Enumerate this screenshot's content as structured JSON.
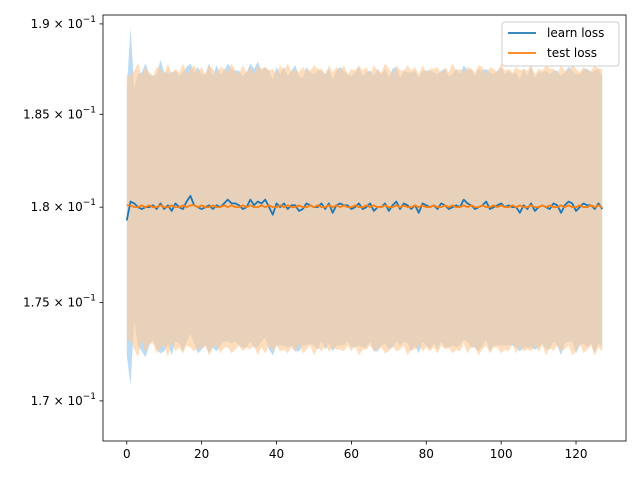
{
  "chart_data": {
    "type": "line",
    "title": "",
    "xlabel": "",
    "ylabel": "",
    "xlim": [
      -6.35,
      133.35
    ],
    "ylim": [
      0.168,
      0.1905
    ],
    "y_scale": "log",
    "x_ticks": [
      0,
      20,
      40,
      60,
      80,
      100,
      120
    ],
    "x_tick_labels": [
      "0",
      "20",
      "40",
      "60",
      "80",
      "100",
      "120"
    ],
    "y_ticks": [
      0.17,
      0.175,
      0.18,
      0.185,
      0.19
    ],
    "y_tick_labels": [
      {
        "mantissa": "1.7",
        "exp": "−1"
      },
      {
        "mantissa": "1.75",
        "exp": "−1"
      },
      {
        "mantissa": "1.8",
        "exp": "−1"
      },
      {
        "mantissa": "1.85",
        "exp": "−1"
      },
      {
        "mantissa": "1.9",
        "exp": "−1"
      }
    ],
    "legend": {
      "placement": "upper-right",
      "entries": [
        "learn loss",
        "test loss"
      ]
    },
    "colors": {
      "learn": "#1f77b4",
      "test": "#ff7f0e",
      "learn_fill": "#a6cff2",
      "test_fill": "#ffcc99",
      "overlap": "#d7ccc8"
    },
    "grid": false,
    "x": [
      0,
      1,
      2,
      3,
      4,
      5,
      6,
      7,
      8,
      9,
      10,
      11,
      12,
      13,
      14,
      15,
      16,
      17,
      18,
      19,
      20,
      21,
      22,
      23,
      24,
      25,
      26,
      27,
      28,
      29,
      30,
      31,
      32,
      33,
      34,
      35,
      36,
      37,
      38,
      39,
      40,
      41,
      42,
      43,
      44,
      45,
      46,
      47,
      48,
      49,
      50,
      51,
      52,
      53,
      54,
      55,
      56,
      57,
      58,
      59,
      60,
      61,
      62,
      63,
      64,
      65,
      66,
      67,
      68,
      69,
      70,
      71,
      72,
      73,
      74,
      75,
      76,
      77,
      78,
      79,
      80,
      81,
      82,
      83,
      84,
      85,
      86,
      87,
      88,
      89,
      90,
      91,
      92,
      93,
      94,
      95,
      96,
      97,
      98,
      99,
      100,
      101,
      102,
      103,
      104,
      105,
      106,
      107,
      108,
      109,
      110,
      111,
      112,
      113,
      114,
      115,
      116,
      117,
      118,
      119,
      120,
      121,
      122,
      123,
      124,
      125,
      126,
      127
    ],
    "series": [
      {
        "name": "learn loss",
        "values": [
          0.1793,
          0.1803,
          0.1802,
          0.18,
          0.1799,
          0.18,
          0.18,
          0.1801,
          0.1799,
          0.1802,
          0.1799,
          0.1801,
          0.1798,
          0.1802,
          0.18,
          0.1799,
          0.1803,
          0.1806,
          0.1801,
          0.18,
          0.1799,
          0.18,
          0.1801,
          0.1799,
          0.1801,
          0.18,
          0.1802,
          0.1804,
          0.1802,
          0.1802,
          0.1801,
          0.1799,
          0.18,
          0.1804,
          0.1801,
          0.1803,
          0.1802,
          0.1804,
          0.18,
          0.1796,
          0.1802,
          0.18,
          0.1802,
          0.1799,
          0.1801,
          0.1801,
          0.1798,
          0.1799,
          0.1802,
          0.1801,
          0.18,
          0.18,
          0.1802,
          0.1799,
          0.1802,
          0.1797,
          0.1801,
          0.1802,
          0.1801,
          0.1801,
          0.1799,
          0.18,
          0.1802,
          0.1799,
          0.18,
          0.1802,
          0.1798,
          0.18,
          0.18,
          0.1802,
          0.1798,
          0.1801,
          0.1803,
          0.1799,
          0.1802,
          0.1801,
          0.1799,
          0.1801,
          0.1797,
          0.1802,
          0.1801,
          0.18,
          0.1801,
          0.1799,
          0.1802,
          0.1801,
          0.1799,
          0.18,
          0.1801,
          0.18,
          0.1804,
          0.1802,
          0.1801,
          0.1799,
          0.18,
          0.1801,
          0.1803,
          0.1799,
          0.18,
          0.1801,
          0.1802,
          0.18,
          0.1801,
          0.18,
          0.18,
          0.1797,
          0.1801,
          0.1799,
          0.1802,
          0.1798,
          0.18,
          0.1801,
          0.18,
          0.1799,
          0.1802,
          0.1801,
          0.1797,
          0.1801,
          0.1803,
          0.1802,
          0.1798,
          0.18,
          0.1802,
          0.1801,
          0.1801,
          0.1799,
          0.1802,
          0.1799
        ],
        "band": [
          0.007,
          0.0095,
          0.0062,
          0.0072,
          0.0074,
          0.0078,
          0.0072,
          0.007,
          0.0073,
          0.0078,
          0.0074,
          0.0072,
          0.0075,
          0.0072,
          0.0071,
          0.0074,
          0.0073,
          0.0072,
          0.0072,
          0.0076,
          0.0073,
          0.0072,
          0.0077,
          0.0072,
          0.0076,
          0.0072,
          0.0072,
          0.0074,
          0.0073,
          0.0072,
          0.0073,
          0.0072,
          0.0073,
          0.0074,
          0.0074,
          0.0076,
          0.0072,
          0.0072,
          0.0074,
          0.0073,
          0.0074,
          0.0072,
          0.0074,
          0.0072,
          0.0073,
          0.0076,
          0.0073,
          0.0071,
          0.0074,
          0.0072,
          0.0072,
          0.0074,
          0.0072,
          0.0073,
          0.0073,
          0.0072,
          0.0073,
          0.0074,
          0.0073,
          0.0071,
          0.0072,
          0.0073,
          0.0074,
          0.0072,
          0.0073,
          0.0072,
          0.0073,
          0.0075,
          0.0072,
          0.0073,
          0.0072,
          0.0074,
          0.0073,
          0.0071,
          0.0072,
          0.0072,
          0.0074,
          0.0073,
          0.0073,
          0.0072,
          0.0073,
          0.0074,
          0.0072,
          0.0073,
          0.0072,
          0.0074,
          0.0072,
          0.0072,
          0.0074,
          0.0072,
          0.0073,
          0.0072,
          0.0074,
          0.0072,
          0.0075,
          0.0073,
          0.0072,
          0.0074,
          0.0072,
          0.0073,
          0.0074,
          0.0072,
          0.0073,
          0.0072,
          0.0073,
          0.0072,
          0.0074,
          0.0072,
          0.0075,
          0.0072,
          0.0073,
          0.0072,
          0.0074,
          0.0073,
          0.0072,
          0.0073,
          0.0074,
          0.0072,
          0.0073,
          0.0072,
          0.0074,
          0.0072,
          0.0073,
          0.0074,
          0.0072,
          0.0075,
          0.0073,
          0.0072
        ]
      },
      {
        "name": "test loss",
        "values": [
          0.1801,
          0.1801,
          0.18,
          0.18,
          0.1801,
          0.18,
          0.1801,
          0.18,
          0.18,
          0.1801,
          0.18,
          0.18,
          0.1801,
          0.18,
          0.18,
          0.1801,
          0.18,
          0.1801,
          0.1801,
          0.18,
          0.1801,
          0.18,
          0.18,
          0.1801,
          0.18,
          0.18,
          0.1801,
          0.18,
          0.1801,
          0.18,
          0.18,
          0.1801,
          0.18,
          0.1801,
          0.18,
          0.18,
          0.1801,
          0.18,
          0.1801,
          0.18,
          0.18,
          0.1801,
          0.18,
          0.1801,
          0.18,
          0.18,
          0.1801,
          0.18,
          0.18,
          0.1801,
          0.18,
          0.1801,
          0.18,
          0.18,
          0.1801,
          0.18,
          0.1801,
          0.18,
          0.1801,
          0.18,
          0.18,
          0.1801,
          0.18,
          0.18,
          0.1801,
          0.18,
          0.1801,
          0.18,
          0.18,
          0.1801,
          0.18,
          0.18,
          0.1801,
          0.18,
          0.1801,
          0.18,
          0.18,
          0.1801,
          0.18,
          0.1801,
          0.18,
          0.18,
          0.1801,
          0.18,
          0.18,
          0.1801,
          0.18,
          0.1801,
          0.18,
          0.18,
          0.1801,
          0.18,
          0.1801,
          0.18,
          0.18,
          0.1801,
          0.18,
          0.18,
          0.1801,
          0.18,
          0.1801,
          0.18,
          0.18,
          0.1801,
          0.18,
          0.1801,
          0.18,
          0.18,
          0.1801,
          0.18,
          0.18,
          0.1801,
          0.18,
          0.1801,
          0.18,
          0.18,
          0.1801,
          0.18,
          0.1801,
          0.18,
          0.18,
          0.1801,
          0.18,
          0.18,
          0.1801,
          0.18,
          0.1801,
          0.18
        ],
        "band": [
          0.0071,
          0.007,
          0.0074,
          0.0078,
          0.007,
          0.0076,
          0.0072,
          0.0071,
          0.0076,
          0.0074,
          0.0072,
          0.0078,
          0.0071,
          0.0075,
          0.0073,
          0.0077,
          0.0072,
          0.0074,
          0.0076,
          0.0073,
          0.0075,
          0.0072,
          0.0077,
          0.0074,
          0.0072,
          0.0076,
          0.0074,
          0.0073,
          0.0077,
          0.0074,
          0.0072,
          0.0076,
          0.0073,
          0.0075,
          0.0072,
          0.0077,
          0.0074,
          0.0076,
          0.0073,
          0.0075,
          0.0072,
          0.0076,
          0.0074,
          0.0077,
          0.0073,
          0.0075,
          0.0072,
          0.0076,
          0.0074,
          0.0073,
          0.0077,
          0.0074,
          0.0075,
          0.0072,
          0.0076,
          0.0073,
          0.0075,
          0.0074,
          0.0076,
          0.0072,
          0.0075,
          0.0073,
          0.0077,
          0.0074,
          0.0075,
          0.0072,
          0.0076,
          0.0074,
          0.0073,
          0.0077,
          0.0075,
          0.0072,
          0.0076,
          0.0074,
          0.0073,
          0.0077,
          0.0074,
          0.0075,
          0.0072,
          0.0076,
          0.0073,
          0.0075,
          0.0074,
          0.0076,
          0.0072,
          0.0075,
          0.0073,
          0.0077,
          0.0074,
          0.0075,
          0.0072,
          0.0076,
          0.0074,
          0.0073,
          0.0077,
          0.0075,
          0.0072,
          0.0076,
          0.0074,
          0.0073,
          0.0077,
          0.0074,
          0.0075,
          0.0072,
          0.0076,
          0.0073,
          0.0075,
          0.0074,
          0.0076,
          0.0072,
          0.0075,
          0.0073,
          0.0077,
          0.0074,
          0.0075,
          0.0072,
          0.0076,
          0.0074,
          0.0073,
          0.0077,
          0.0075,
          0.0072,
          0.0076,
          0.0074,
          0.0073,
          0.0077,
          0.0074,
          0.0075
        ]
      }
    ]
  }
}
